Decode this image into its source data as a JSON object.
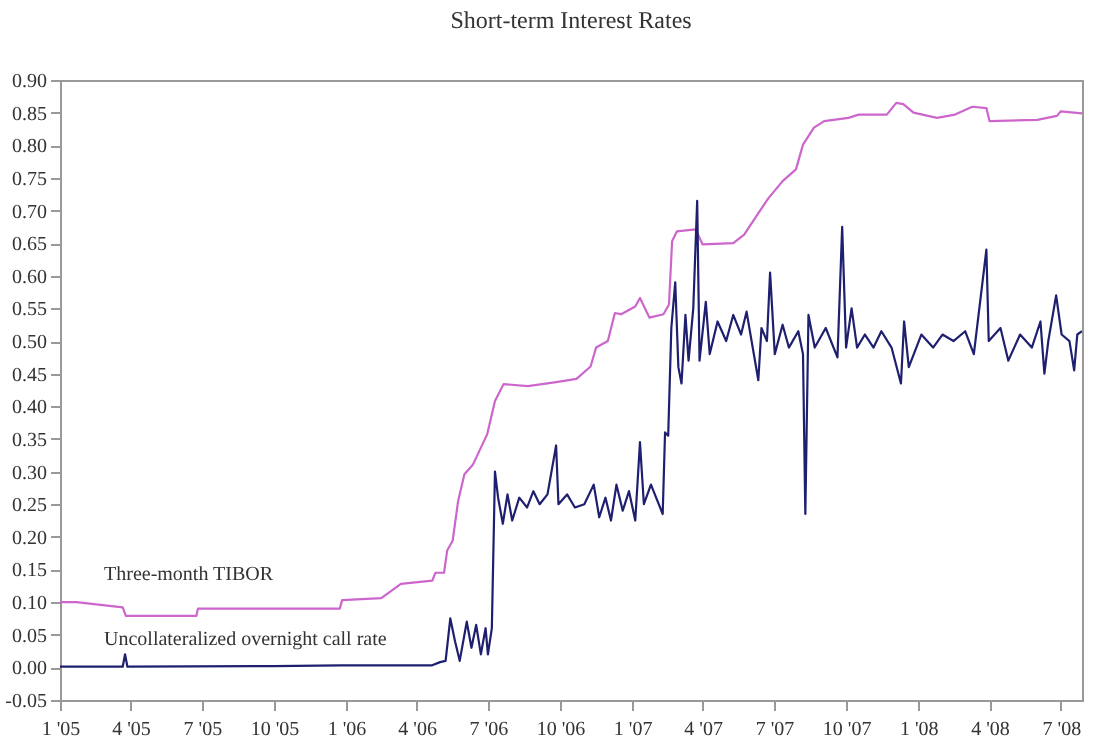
{
  "chart_data": {
    "type": "line",
    "title": "Short-term Interest Rates",
    "xlim": [
      "2005-01-01",
      "2008-07-28"
    ],
    "xticks": [
      {
        "value": "2005-01-01",
        "label": "1 '05"
      },
      {
        "value": "2005-04-01",
        "label": "4 '05"
      },
      {
        "value": "2005-07-01",
        "label": "7 '05"
      },
      {
        "value": "2005-10-01",
        "label": "10 '05"
      },
      {
        "value": "2006-01-01",
        "label": "1 '06"
      },
      {
        "value": "2006-04-01",
        "label": "4 '06"
      },
      {
        "value": "2006-07-01",
        "label": "7 '06"
      },
      {
        "value": "2006-10-01",
        "label": "10 '06"
      },
      {
        "value": "2007-01-01",
        "label": "1 '07"
      },
      {
        "value": "2007-04-01",
        "label": "4 '07"
      },
      {
        "value": "2007-07-01",
        "label": "7 '07"
      },
      {
        "value": "2007-10-01",
        "label": "10 '07"
      },
      {
        "value": "2008-01-01",
        "label": "1 '08"
      },
      {
        "value": "2008-04-01",
        "label": "4 '08"
      },
      {
        "value": "2008-07-01",
        "label": "7 '08"
      }
    ],
    "ylim": [
      -0.05,
      0.9
    ],
    "yticks": [
      {
        "value": -0.05,
        "label": "-0.05"
      },
      {
        "value": 0,
        "label": "0.00"
      },
      {
        "value": 0.05,
        "label": "0.05"
      },
      {
        "value": 0.1,
        "label": "0.10"
      },
      {
        "value": 0.15,
        "label": "0.15"
      },
      {
        "value": 0.2,
        "label": "0.20"
      },
      {
        "value": 0.25,
        "label": "0.25"
      },
      {
        "value": 0.3,
        "label": "0.30"
      },
      {
        "value": 0.35,
        "label": "0.35"
      },
      {
        "value": 0.4,
        "label": "0.40"
      },
      {
        "value": 0.45,
        "label": "0.45"
      },
      {
        "value": 0.5,
        "label": "0.50"
      },
      {
        "value": 0.55,
        "label": "0.55"
      },
      {
        "value": 0.6,
        "label": "0.60"
      },
      {
        "value": 0.65,
        "label": "0.65"
      },
      {
        "value": 0.7,
        "label": "0.70"
      },
      {
        "value": 0.75,
        "label": "0.75"
      },
      {
        "value": 0.8,
        "label": "0.80"
      },
      {
        "value": 0.85,
        "label": "0.85"
      },
      {
        "value": 0.9,
        "label": "0.90"
      }
    ],
    "grid": false,
    "legend": false,
    "marker": "none",
    "line_style": "solid",
    "series": [
      {
        "name": "Three-month TIBOR",
        "color": "#cc66cc",
        "x": [
          "2005-01-01",
          "2005-01-22",
          "2005-03-22",
          "2005-03-26",
          "2005-06-24",
          "2005-06-26",
          "2005-12-24",
          "2005-12-27",
          "2006-02-15",
          "2006-03-12",
          "2006-04-21",
          "2006-04-25",
          "2006-05-06",
          "2006-05-10",
          "2006-05-17",
          "2006-05-24",
          "2006-06-01",
          "2006-06-12",
          "2006-06-30",
          "2006-07-10",
          "2006-07-21",
          "2006-08-21",
          "2006-09-26",
          "2006-10-22",
          "2006-11-09",
          "2006-11-16",
          "2006-12-01",
          "2006-12-10",
          "2006-12-18",
          "2007-01-05",
          "2007-01-11",
          "2007-01-23",
          "2007-02-10",
          "2007-02-17",
          "2007-02-21",
          "2007-02-27",
          "2007-03-23",
          "2007-04-01",
          "2007-05-10",
          "2007-05-24",
          "2007-06-10",
          "2007-06-24",
          "2007-07-12",
          "2007-07-29",
          "2007-08-07",
          "2007-08-21",
          "2007-09-03",
          "2007-10-04",
          "2007-10-17",
          "2007-11-22",
          "2007-12-04",
          "2007-12-13",
          "2007-12-26",
          "2008-01-25",
          "2008-02-17",
          "2008-03-10",
          "2008-03-28",
          "2008-04-01",
          "2008-06-01",
          "2008-06-26",
          "2008-07-01",
          "2008-07-28"
        ],
        "values": [
          0.1,
          0.1,
          0.092,
          0.079,
          0.079,
          0.09,
          0.09,
          0.103,
          0.106,
          0.128,
          0.133,
          0.145,
          0.145,
          0.179,
          0.194,
          0.255,
          0.296,
          0.311,
          0.357,
          0.408,
          0.434,
          0.431,
          0.437,
          0.442,
          0.461,
          0.49,
          0.5,
          0.543,
          0.541,
          0.553,
          0.566,
          0.536,
          0.541,
          0.556,
          0.653,
          0.668,
          0.671,
          0.648,
          0.65,
          0.663,
          0.694,
          0.719,
          0.745,
          0.763,
          0.801,
          0.827,
          0.837,
          0.842,
          0.847,
          0.847,
          0.865,
          0.863,
          0.85,
          0.842,
          0.847,
          0.859,
          0.857,
          0.837,
          0.839,
          0.845,
          0.852,
          0.849
        ]
      },
      {
        "name": "Uncollateralized overnight call rate",
        "color": "#1f1f70",
        "x": [
          "2005-01-01",
          "2005-03-22",
          "2005-03-25",
          "2005-03-28",
          "2005-09-30",
          "2005-12-25",
          "2006-04-20",
          "2006-05-01",
          "2006-05-08",
          "2006-05-14",
          "2006-05-20",
          "2006-05-26",
          "2006-06-04",
          "2006-06-10",
          "2006-06-16",
          "2006-06-22",
          "2006-06-28",
          "2006-07-01",
          "2006-07-06",
          "2006-07-10",
          "2006-07-14",
          "2006-07-20",
          "2006-07-26",
          "2006-08-01",
          "2006-08-10",
          "2006-08-20",
          "2006-08-28",
          "2006-09-05",
          "2006-09-15",
          "2006-09-26",
          "2006-09-29",
          "2006-10-10",
          "2006-10-20",
          "2006-11-01",
          "2006-11-13",
          "2006-11-20",
          "2006-11-28",
          "2006-12-05",
          "2006-12-12",
          "2006-12-20",
          "2006-12-28",
          "2007-01-05",
          "2007-01-11",
          "2007-01-16",
          "2007-01-25",
          "2007-02-09",
          "2007-02-12",
          "2007-02-16",
          "2007-02-20",
          "2007-02-25",
          "2007-03-01",
          "2007-03-05",
          "2007-03-10",
          "2007-03-14",
          "2007-03-20",
          "2007-03-25",
          "2007-03-28",
          "2007-04-05",
          "2007-04-10",
          "2007-04-20",
          "2007-05-01",
          "2007-05-10",
          "2007-05-20",
          "2007-05-27",
          "2007-06-11",
          "2007-06-15",
          "2007-06-22",
          "2007-06-26",
          "2007-07-02",
          "2007-07-12",
          "2007-07-20",
          "2007-08-01",
          "2007-08-07",
          "2007-08-10",
          "2007-08-14",
          "2007-08-22",
          "2007-09-05",
          "2007-09-20",
          "2007-09-26",
          "2007-10-01",
          "2007-10-08",
          "2007-10-15",
          "2007-10-25",
          "2007-11-05",
          "2007-11-15",
          "2007-11-28",
          "2007-12-10",
          "2007-12-14",
          "2007-12-20",
          "2008-01-05",
          "2008-01-20",
          "2008-02-01",
          "2008-02-15",
          "2008-03-01",
          "2008-03-12",
          "2008-03-28",
          "2008-03-31",
          "2008-04-15",
          "2008-04-25",
          "2008-05-10",
          "2008-05-25",
          "2008-06-05",
          "2008-06-10",
          "2008-06-15",
          "2008-06-25",
          "2008-07-02",
          "2008-07-12",
          "2008-07-18",
          "2008-07-22",
          "2008-07-28"
        ],
        "values": [
          0.001,
          0.001,
          0.02,
          0.001,
          0.002,
          0.003,
          0.003,
          0.008,
          0.01,
          0.075,
          0.04,
          0.01,
          0.07,
          0.03,
          0.065,
          0.02,
          0.06,
          0.02,
          0.06,
          0.3,
          0.26,
          0.22,
          0.265,
          0.225,
          0.26,
          0.245,
          0.27,
          0.25,
          0.265,
          0.34,
          0.25,
          0.265,
          0.245,
          0.25,
          0.28,
          0.23,
          0.26,
          0.225,
          0.28,
          0.24,
          0.27,
          0.225,
          0.345,
          0.25,
          0.28,
          0.235,
          0.36,
          0.355,
          0.52,
          0.59,
          0.46,
          0.435,
          0.54,
          0.47,
          0.55,
          0.715,
          0.47,
          0.56,
          0.48,
          0.53,
          0.5,
          0.54,
          0.51,
          0.545,
          0.44,
          0.52,
          0.5,
          0.605,
          0.48,
          0.525,
          0.49,
          0.515,
          0.48,
          0.235,
          0.54,
          0.49,
          0.52,
          0.475,
          0.675,
          0.49,
          0.55,
          0.49,
          0.51,
          0.49,
          0.515,
          0.49,
          0.435,
          0.53,
          0.46,
          0.51,
          0.49,
          0.51,
          0.5,
          0.515,
          0.48,
          0.64,
          0.5,
          0.52,
          0.47,
          0.51,
          0.49,
          0.53,
          0.45,
          0.5,
          0.57,
          0.51,
          0.5,
          0.455,
          0.51,
          0.515
        ]
      }
    ]
  }
}
